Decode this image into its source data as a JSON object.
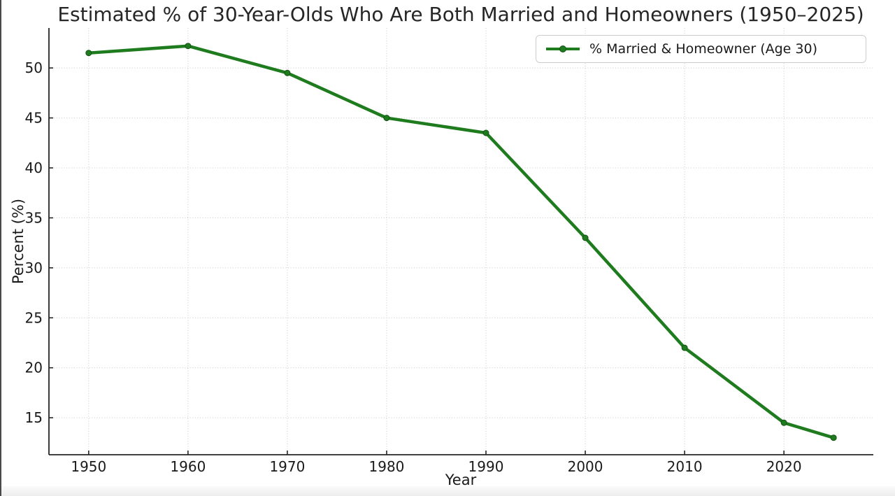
{
  "frame": {
    "background": "#ffffff",
    "left_border_color": "#4a4a4a",
    "bottom_band_color": "#ededed"
  },
  "chart_data": {
    "type": "line",
    "title": "Estimated % of 30-Year-Olds Who Are Both Married and Homeowners (1950–2025)",
    "xlabel": "Year",
    "ylabel": "Percent (%)",
    "x": [
      1950,
      1960,
      1970,
      1980,
      1990,
      2000,
      2010,
      2020,
      2025
    ],
    "series": [
      {
        "name": "% Married & Homeowner (Age 30)",
        "values": [
          51.5,
          52.2,
          49.5,
          45.0,
          43.5,
          33.0,
          22.0,
          14.5,
          13.0
        ],
        "color": "#1e7b1e",
        "marker": "circle",
        "line_width": 4.5
      }
    ],
    "xticks": [
      1950,
      1960,
      1970,
      1980,
      1990,
      2000,
      2010,
      2020
    ],
    "yticks": [
      15,
      20,
      25,
      30,
      35,
      40,
      45,
      50
    ],
    "xlim": [
      1946,
      2029
    ],
    "ylim": [
      11.3,
      54
    ],
    "grid": true,
    "grid_style": "dotted",
    "grid_color": "#c9c9c9",
    "axis_color": "#262626",
    "tick_label_color": "#1a1a1a",
    "legend_position": "upper right"
  }
}
